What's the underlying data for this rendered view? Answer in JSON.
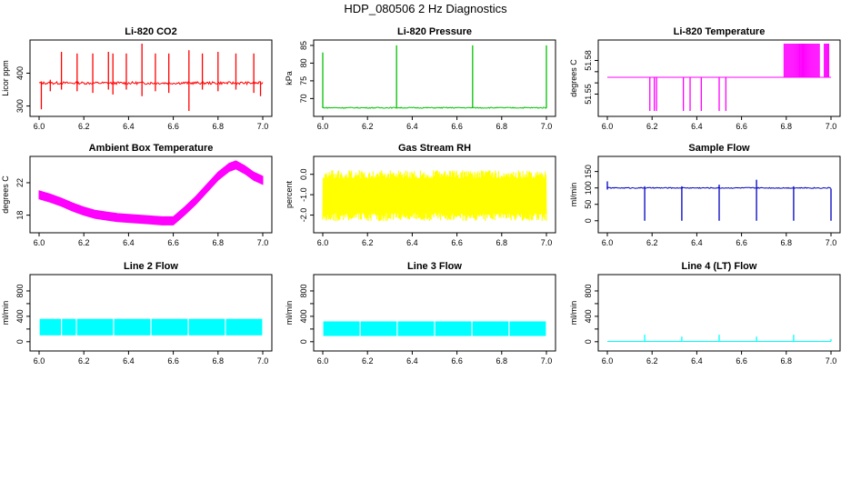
{
  "page": {
    "title": "HDP_080506  2 Hz Diagnostics"
  },
  "chart_data": [
    {
      "type": "line",
      "title": "Li-820 CO2",
      "xlabel": "",
      "ylabel": "Licor ppm",
      "color": "#ff0000",
      "xlim": [
        6.0,
        7.0
      ],
      "ylim": [
        285,
        490
      ],
      "xticks": [
        6.0,
        6.2,
        6.4,
        6.6,
        6.8,
        7.0
      ],
      "xtick_labels": [
        "6.0",
        "6.2",
        "6.4",
        "6.6",
        "6.8",
        "7.0"
      ],
      "yticks": [
        300,
        400
      ],
      "ytick_labels": [
        "300",
        "400"
      ],
      "baseline": 370,
      "noise": 4,
      "spikes": [
        {
          "x": 6.01,
          "lo": 290,
          "hi": 375
        },
        {
          "x": 6.05,
          "lo": 345,
          "hi": 380
        },
        {
          "x": 6.1,
          "lo": 350,
          "hi": 465
        },
        {
          "x": 6.17,
          "lo": 345,
          "hi": 460
        },
        {
          "x": 6.24,
          "lo": 340,
          "hi": 460
        },
        {
          "x": 6.31,
          "lo": 350,
          "hi": 465
        },
        {
          "x": 6.33,
          "lo": 335,
          "hi": 460
        },
        {
          "x": 6.39,
          "lo": 350,
          "hi": 460
        },
        {
          "x": 6.46,
          "lo": 330,
          "hi": 490
        },
        {
          "x": 6.52,
          "lo": 345,
          "hi": 460
        },
        {
          "x": 6.58,
          "lo": 340,
          "hi": 460
        },
        {
          "x": 6.67,
          "lo": 285,
          "hi": 470
        },
        {
          "x": 6.73,
          "lo": 350,
          "hi": 460
        },
        {
          "x": 6.8,
          "lo": 345,
          "hi": 465
        },
        {
          "x": 6.88,
          "lo": 350,
          "hi": 460
        },
        {
          "x": 6.96,
          "lo": 340,
          "hi": 460
        },
        {
          "x": 6.99,
          "lo": 330,
          "hi": 375
        }
      ]
    },
    {
      "type": "line",
      "title": "Li-820 Pressure",
      "xlabel": "",
      "ylabel": "kPa",
      "color": "#00c000",
      "xlim": [
        6.0,
        7.0
      ],
      "ylim": [
        66.5,
        85.5
      ],
      "xticks": [
        6.0,
        6.2,
        6.4,
        6.6,
        6.8,
        7.0
      ],
      "xtick_labels": [
        "6.0",
        "6.2",
        "6.4",
        "6.6",
        "6.8",
        "7.0"
      ],
      "yticks": [
        70,
        75,
        80,
        85
      ],
      "ytick_labels": [
        "70",
        "75",
        "80",
        "85"
      ],
      "baseline": 67.4,
      "noise": 0.15,
      "spikes": [
        {
          "x": 6.0,
          "lo": 67.3,
          "hi": 83
        },
        {
          "x": 6.33,
          "lo": 67.3,
          "hi": 85
        },
        {
          "x": 6.67,
          "lo": 67.3,
          "hi": 85
        },
        {
          "x": 7.0,
          "lo": 67.3,
          "hi": 85
        }
      ]
    },
    {
      "type": "line",
      "title": "Li-820 Temperature",
      "xlabel": "",
      "ylabel": "degrees C",
      "color": "#ff00ff",
      "xlim": [
        6.0,
        7.0
      ],
      "ylim": [
        51.535,
        51.595
      ],
      "xticks": [
        6.0,
        6.2,
        6.4,
        6.6,
        6.8,
        7.0
      ],
      "xtick_labels": [
        "6.0",
        "6.2",
        "6.4",
        "6.6",
        "6.8",
        "7.0"
      ],
      "yticks": [
        51.55,
        51.58
      ],
      "ytick_labels": [
        "51.55",
        "51.58"
      ],
      "ytick_minor": [
        51.55,
        51.56,
        51.57,
        51.58
      ],
      "baseline": 51.565,
      "noise": 0,
      "spikes": [
        {
          "x": 6.19,
          "lo": 51.535,
          "hi": 51.565
        },
        {
          "x": 6.21,
          "lo": 51.535,
          "hi": 51.565
        },
        {
          "x": 6.22,
          "lo": 51.535,
          "hi": 51.565
        },
        {
          "x": 6.34,
          "lo": 51.535,
          "hi": 51.565
        },
        {
          "x": 6.37,
          "lo": 51.535,
          "hi": 51.565
        },
        {
          "x": 6.42,
          "lo": 51.535,
          "hi": 51.565
        },
        {
          "x": 6.5,
          "lo": 51.535,
          "hi": 51.565
        },
        {
          "x": 6.53,
          "lo": 51.535,
          "hi": 51.565
        }
      ],
      "bands": [
        {
          "x0": 6.79,
          "x1": 6.86,
          "lo": 51.565,
          "hi": 51.595
        },
        {
          "x0": 6.86,
          "x1": 6.95,
          "lo": 51.565,
          "hi": 51.595
        },
        {
          "x0": 6.97,
          "x1": 6.99,
          "lo": 51.565,
          "hi": 51.595
        }
      ]
    },
    {
      "type": "line",
      "title": "Ambient Box Temperature",
      "xlabel": "",
      "ylabel": "degrees C",
      "color": "#ff00ff",
      "xlim": [
        6.0,
        7.0
      ],
      "ylim": [
        16.5,
        24.8
      ],
      "xticks": [
        6.0,
        6.2,
        6.4,
        6.6,
        6.8,
        7.0
      ],
      "xtick_labels": [
        "6.0",
        "6.2",
        "6.4",
        "6.6",
        "6.8",
        "7.0"
      ],
      "yticks": [
        18,
        22
      ],
      "ytick_labels": [
        "18",
        "22"
      ],
      "band": 0.5,
      "curve_x": [
        6.0,
        6.05,
        6.1,
        6.15,
        6.2,
        6.25,
        6.3,
        6.35,
        6.4,
        6.45,
        6.5,
        6.55,
        6.6,
        6.65,
        6.7,
        6.75,
        6.8,
        6.85,
        6.88,
        6.92,
        6.96,
        7.0
      ],
      "curve_y": [
        20.5,
        20.1,
        19.6,
        19.0,
        18.5,
        18.1,
        17.9,
        17.7,
        17.6,
        17.5,
        17.4,
        17.3,
        17.3,
        18.5,
        19.8,
        21.3,
        22.8,
        23.9,
        24.2,
        23.6,
        22.8,
        22.3
      ]
    },
    {
      "type": "line",
      "title": "Gas Stream RH",
      "xlabel": "",
      "ylabel": "percent",
      "color": "#ffff00",
      "xlim": [
        6.0,
        7.0
      ],
      "ylim": [
        -2.6,
        0.7
      ],
      "xticks": [
        6.0,
        6.2,
        6.4,
        6.6,
        6.8,
        7.0
      ],
      "xtick_labels": [
        "6.0",
        "6.2",
        "6.4",
        "6.6",
        "6.8",
        "7.0"
      ],
      "yticks": [
        -2.0,
        -1.0,
        0.0
      ],
      "ytick_labels": [
        "-2.0",
        "-1.0",
        "0.0"
      ],
      "center": -1.1,
      "spread_lo": -2.3,
      "spread_hi": 0.2
    },
    {
      "type": "line",
      "title": "Sample Flow",
      "xlabel": "",
      "ylabel": "ml/min",
      "color": "#0000c0",
      "xlim": [
        6.0,
        7.0
      ],
      "ylim": [
        -20,
        185
      ],
      "xticks": [
        6.0,
        6.2,
        6.4,
        6.6,
        6.8,
        7.0
      ],
      "xtick_labels": [
        "6.0",
        "6.2",
        "6.4",
        "6.6",
        "6.8",
        "7.0"
      ],
      "yticks": [
        0,
        50,
        100,
        150
      ],
      "ytick_labels": [
        "0",
        "50",
        "100",
        "150"
      ],
      "baseline": 100,
      "noise": 1.5,
      "spikes": [
        {
          "x": 6.0,
          "lo": 95,
          "hi": 120
        },
        {
          "x": 6.167,
          "lo": 0,
          "hi": 105
        },
        {
          "x": 6.333,
          "lo": 0,
          "hi": 105
        },
        {
          "x": 6.5,
          "lo": 0,
          "hi": 110
        },
        {
          "x": 6.667,
          "lo": 0,
          "hi": 125
        },
        {
          "x": 6.833,
          "lo": 0,
          "hi": 105
        },
        {
          "x": 7.0,
          "lo": 0,
          "hi": 98
        }
      ]
    },
    {
      "type": "line",
      "title": "Line 2 Flow",
      "xlabel": "",
      "ylabel": "ml/min",
      "color": "#00ffff",
      "xlim": [
        6.0,
        7.0
      ],
      "ylim": [
        -60,
        1000
      ],
      "xticks": [
        6.0,
        6.2,
        6.4,
        6.6,
        6.8,
        7.0
      ],
      "xtick_labels": [
        "6.0",
        "6.2",
        "6.4",
        "6.6",
        "6.8",
        "7.0"
      ],
      "yticks": [
        0,
        400,
        800
      ],
      "ytick_labels": [
        "0",
        "400",
        "800"
      ],
      "ytick_minor": [
        0,
        200,
        400,
        600,
        800
      ],
      "band_lo": 100,
      "band_hi": 360,
      "gaps": [
        6.0,
        6.1,
        6.167,
        6.333,
        6.5,
        6.667,
        6.833,
        7.0
      ]
    },
    {
      "type": "line",
      "title": "Line 3 Flow",
      "xlabel": "",
      "ylabel": "ml/min",
      "color": "#00ffff",
      "xlim": [
        6.0,
        7.0
      ],
      "ylim": [
        -60,
        1000
      ],
      "xticks": [
        6.0,
        6.2,
        6.4,
        6.6,
        6.8,
        7.0
      ],
      "xtick_labels": [
        "6.0",
        "6.2",
        "6.4",
        "6.6",
        "6.8",
        "7.0"
      ],
      "yticks": [
        0,
        400,
        800
      ],
      "ytick_labels": [
        "0",
        "400",
        "800"
      ],
      "ytick_minor": [
        0,
        200,
        400,
        600,
        800
      ],
      "band_lo": 90,
      "band_hi": 320,
      "gaps": [
        6.0,
        6.167,
        6.333,
        6.5,
        6.667,
        6.833,
        7.0
      ]
    },
    {
      "type": "line",
      "title": "Line 4 (LT) Flow",
      "xlabel": "",
      "ylabel": "ml/min",
      "color": "#00ffff",
      "xlim": [
        6.0,
        7.0
      ],
      "ylim": [
        -60,
        1000
      ],
      "xticks": [
        6.0,
        6.2,
        6.4,
        6.6,
        6.8,
        7.0
      ],
      "xtick_labels": [
        "6.0",
        "6.2",
        "6.4",
        "6.6",
        "6.8",
        "7.0"
      ],
      "yticks": [
        0,
        400,
        800
      ],
      "ytick_labels": [
        "0",
        "400",
        "800"
      ],
      "ytick_minor": [
        0,
        200,
        400,
        600,
        800
      ],
      "baseline": 5,
      "noise": 0,
      "spikes": [
        {
          "x": 6.167,
          "lo": 5,
          "hi": 110
        },
        {
          "x": 6.333,
          "lo": 5,
          "hi": 80
        },
        {
          "x": 6.5,
          "lo": 5,
          "hi": 110
        },
        {
          "x": 6.667,
          "lo": 5,
          "hi": 80
        },
        {
          "x": 6.833,
          "lo": 5,
          "hi": 110
        },
        {
          "x": 7.0,
          "lo": 5,
          "hi": 40
        }
      ]
    }
  ]
}
